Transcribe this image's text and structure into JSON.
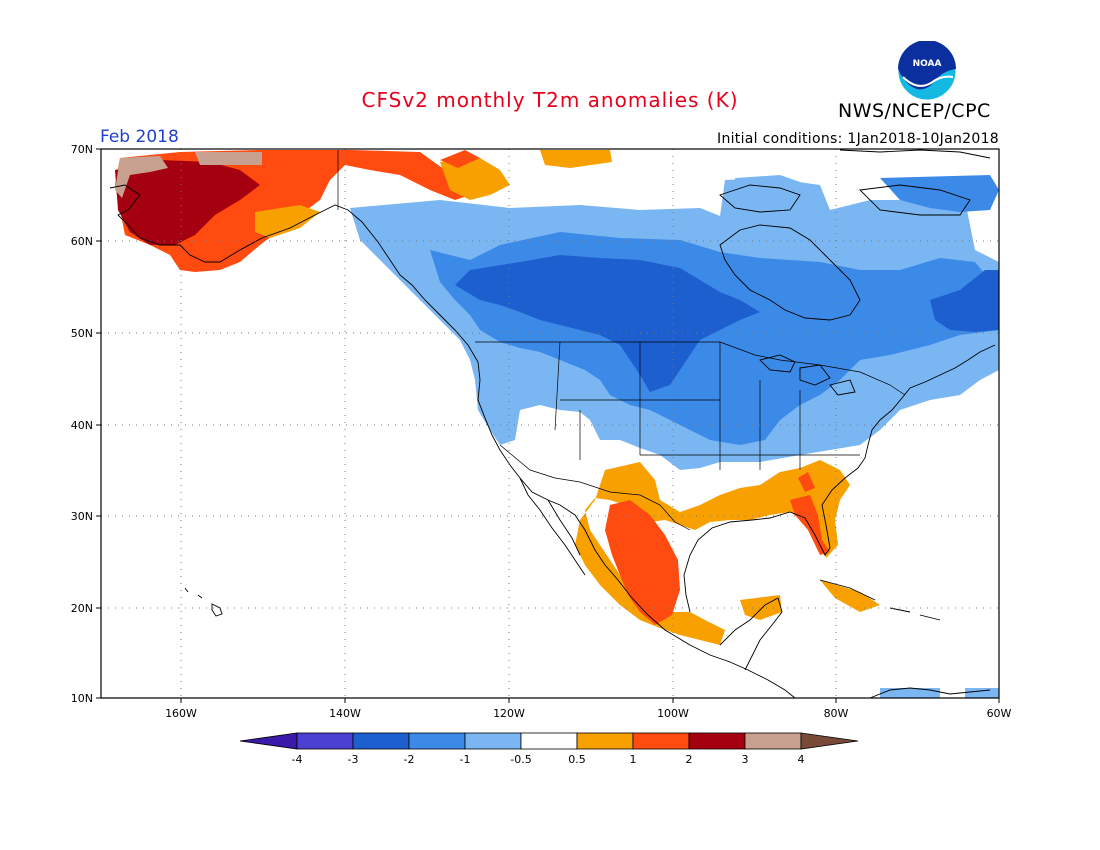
{
  "header": {
    "title": "CFSv2 monthly T2m anomalies (K)",
    "agency": "NWS/NCEP/CPC",
    "month": "Feb 2018",
    "initial_conditions": "Initial conditions: 1Jan2018-10Jan2018",
    "logo_text": "NOAA"
  },
  "map": {
    "lat_labels": [
      "70N",
      "60N",
      "50N",
      "40N",
      "30N",
      "20N",
      "10N"
    ],
    "lon_labels": [
      "160W",
      "140W",
      "120W",
      "100W",
      "80W",
      "60W"
    ]
  },
  "colorbar": {
    "labels": [
      "-4",
      "-3",
      "-2",
      "-1",
      "-0.5",
      "0.5",
      "1",
      "2",
      "3",
      "4"
    ],
    "colors": {
      "lt_-4": "#3a1aa8",
      "-4_-3": "#4b40d2",
      "-3_-2": "#1e5fd0",
      "-2_-1": "#3c8ae8",
      "-1_-0.5": "#7ab6f2",
      "-0.5_0.5": "#ffffff",
      "0.5_1": "#f7a000",
      "1_2": "#ff4a10",
      "2_3": "#a5000f",
      "3_4": "#c8a090",
      "gt_4": "#7a4a38"
    }
  }
}
